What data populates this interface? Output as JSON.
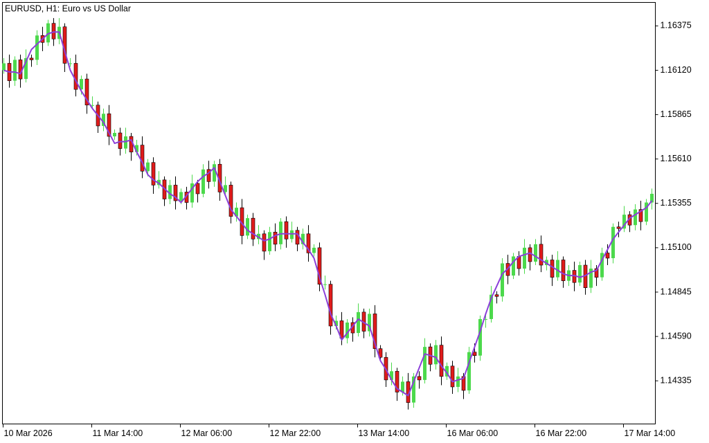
{
  "chart_data": {
    "type": "candlestick",
    "title": "EURUSD, H1:  Euro vs US Dollar",
    "categories": [
      "10 Mar 2026",
      null,
      null,
      null,
      null,
      null,
      null,
      null,
      null,
      null,
      null,
      null,
      null,
      null,
      null,
      null,
      "11 Mar 14:00",
      null,
      null,
      null,
      null,
      null,
      null,
      null,
      null,
      null,
      null,
      null,
      null,
      null,
      null,
      null,
      "12 Mar 06:00",
      null,
      null,
      null,
      null,
      null,
      null,
      null,
      null,
      null,
      null,
      null,
      null,
      null,
      null,
      null,
      "12 Mar 22:00",
      null,
      null,
      null,
      null,
      null,
      null,
      null,
      null,
      null,
      null,
      null,
      null,
      null,
      null,
      null,
      "13 Mar 14:00",
      null,
      null,
      null,
      null,
      null,
      null,
      null,
      null,
      null,
      null,
      null,
      null,
      null,
      null,
      null,
      "16 Mar 06:00",
      null,
      null,
      null,
      null,
      null,
      null,
      null,
      null,
      null,
      null,
      null,
      null,
      null,
      null,
      null,
      "16 Mar 22:00",
      null,
      null,
      null,
      null,
      null,
      null,
      null,
      null,
      null,
      null,
      null,
      null,
      null,
      null,
      null,
      "17 Mar 14:00",
      null,
      null,
      null,
      null,
      null
    ],
    "open": [
      1.1612,
      1.1616,
      1.1606,
      1.1618,
      1.1607,
      1.1619,
      1.1618,
      1.1632,
      1.1628,
      1.1639,
      1.163,
      1.1637,
      1.1616,
      1.1616,
      1.1601,
      1.1607,
      1.1592,
      1.1592,
      1.158,
      1.1587,
      1.1574,
      1.1576,
      1.1567,
      1.1574,
      1.1565,
      1.1569,
      1.1554,
      1.1559,
      1.1546,
      1.1549,
      1.1538,
      1.1546,
      1.1537,
      1.1542,
      1.1536,
      1.1547,
      1.1541,
      1.1555,
      1.1548,
      1.1558,
      1.1542,
      1.1546,
      1.1528,
      1.1533,
      1.1517,
      1.1527,
      1.1515,
      1.1518,
      1.1508,
      1.1519,
      1.1512,
      1.1525,
      1.1515,
      1.152,
      1.1512,
      1.1518,
      1.1507,
      1.151,
      1.1489,
      1.1489,
      1.1465,
      1.1468,
      1.1458,
      1.1467,
      1.1461,
      1.1473,
      1.1462,
      1.1472,
      1.1452,
      1.1447,
      1.1434,
      1.1439,
      1.1427,
      1.1433,
      1.1421,
      1.1436,
      1.1434,
      1.1453,
      1.1443,
      1.1454,
      1.1436,
      1.1442,
      1.143,
      1.1436,
      1.1428,
      1.145,
      1.1448,
      1.1469,
      1.1469,
      1.1483,
      1.1482,
      1.1501,
      1.1494,
      1.1505,
      1.1498,
      1.151,
      1.1502,
      1.1512,
      1.15,
      1.1503,
      1.1493,
      1.1503,
      1.1491,
      1.1497,
      1.149,
      1.15,
      1.1487,
      1.1498,
      1.1493,
      1.1507,
      1.1504,
      1.1522,
      1.1521,
      1.1529,
      1.1523,
      1.1532,
      1.1525,
      1.1536
    ],
    "high": [
      1.1619,
      1.1621,
      1.162,
      1.1621,
      1.1624,
      1.1621,
      1.1635,
      1.1637,
      1.1641,
      1.1642,
      1.1642,
      1.1639,
      1.1619,
      1.1621,
      1.1609,
      1.161,
      1.1597,
      1.1594,
      1.159,
      1.1592,
      1.1578,
      1.1579,
      1.1579,
      1.1576,
      1.1572,
      1.1574,
      1.1561,
      1.1562,
      1.1554,
      1.1551,
      1.1549,
      1.1551,
      1.1544,
      1.1545,
      1.1552,
      1.1549,
      1.1558,
      1.156,
      1.156,
      1.1561,
      1.1551,
      1.1548,
      1.1536,
      1.1538,
      1.1529,
      1.153,
      1.1523,
      1.152,
      1.1522,
      1.1524,
      1.1527,
      1.1528,
      1.1525,
      1.1522,
      1.1521,
      1.1523,
      1.1512,
      1.1513,
      1.1494,
      1.1491,
      1.1471,
      1.1473,
      1.1469,
      1.147,
      1.1478,
      1.1475,
      1.1475,
      1.1477,
      1.1454,
      1.145,
      1.1444,
      1.1441,
      1.1436,
      1.1438,
      1.1438,
      1.1439,
      1.1458,
      1.1455,
      1.1457,
      1.1459,
      1.1444,
      1.1445,
      1.1441,
      1.1438,
      1.1453,
      1.1455,
      1.1471,
      1.1472,
      1.1488,
      1.1485,
      1.1504,
      1.1506,
      1.1507,
      1.1508,
      1.1515,
      1.1512,
      1.1515,
      1.1517,
      1.1505,
      1.1506,
      1.1508,
      1.1505,
      1.15,
      1.1502,
      1.1502,
      1.1503,
      1.1503,
      1.15,
      1.151,
      1.1512,
      1.1524,
      1.1525,
      1.1534,
      1.1531,
      1.1535,
      1.1537,
      1.1538,
      1.1544
    ],
    "low": [
      1.161,
      1.1602,
      1.1603,
      1.1602,
      1.1605,
      1.1614,
      1.1615,
      1.1623,
      1.1626,
      1.1626,
      1.1627,
      1.1611,
      1.1614,
      1.1597,
      1.1598,
      1.1587,
      1.159,
      1.1576,
      1.1577,
      1.1569,
      1.1572,
      1.1563,
      1.1564,
      1.156,
      1.1563,
      1.155,
      1.1551,
      1.1541,
      1.1544,
      1.1534,
      1.1535,
      1.1532,
      1.1535,
      1.1532,
      1.1533,
      1.1536,
      1.1539,
      1.1544,
      1.1545,
      1.1537,
      1.154,
      1.1524,
      1.1525,
      1.1512,
      1.1515,
      1.1511,
      1.1512,
      1.1503,
      1.1506,
      1.1508,
      1.1509,
      1.151,
      1.1513,
      1.1508,
      1.1509,
      1.1502,
      1.1505,
      1.1485,
      1.1486,
      1.146,
      1.1463,
      1.1454,
      1.1455,
      1.1456,
      1.1459,
      1.1458,
      1.1459,
      1.1447,
      1.1445,
      1.143,
      1.1431,
      1.1422,
      1.1425,
      1.1417,
      1.1418,
      1.1429,
      1.1432,
      1.1439,
      1.144,
      1.1431,
      1.1434,
      1.1426,
      1.1427,
      1.1423,
      1.1426,
      1.1444,
      1.1445,
      1.1464,
      1.1467,
      1.1478,
      1.1479,
      1.1489,
      1.1492,
      1.1494,
      1.1495,
      1.1497,
      1.15,
      1.1496,
      1.1497,
      1.1488,
      1.1491,
      1.1487,
      1.1488,
      1.1485,
      1.1488,
      1.1483,
      1.1484,
      1.1488,
      1.1491,
      1.15,
      1.1501,
      1.1516,
      1.1519,
      1.1519,
      1.152,
      1.152,
      1.1523,
      1.1532
    ],
    "close": [
      1.1616,
      1.1606,
      1.1618,
      1.1607,
      1.1619,
      1.1618,
      1.1632,
      1.1628,
      1.1639,
      1.163,
      1.1637,
      1.1616,
      1.1616,
      1.1601,
      1.1607,
      1.1592,
      1.1592,
      1.158,
      1.1587,
      1.1574,
      1.1576,
      1.1567,
      1.1574,
      1.1565,
      1.1569,
      1.1554,
      1.1559,
      1.1546,
      1.1549,
      1.1538,
      1.1546,
      1.1537,
      1.1542,
      1.1536,
      1.1547,
      1.1541,
      1.1555,
      1.1548,
      1.1558,
      1.1542,
      1.1546,
      1.1528,
      1.1533,
      1.1517,
      1.1527,
      1.1515,
      1.1518,
      1.1508,
      1.1519,
      1.1512,
      1.1525,
      1.1515,
      1.152,
      1.1512,
      1.1518,
      1.1507,
      1.151,
      1.1489,
      1.1489,
      1.1465,
      1.1468,
      1.1458,
      1.1467,
      1.1461,
      1.1473,
      1.1462,
      1.1472,
      1.1452,
      1.1447,
      1.1434,
      1.1439,
      1.1427,
      1.1433,
      1.1421,
      1.1436,
      1.1434,
      1.1453,
      1.1443,
      1.1454,
      1.1436,
      1.1442,
      1.143,
      1.1436,
      1.1428,
      1.145,
      1.1448,
      1.1469,
      1.1469,
      1.1483,
      1.1482,
      1.1501,
      1.1494,
      1.1505,
      1.1498,
      1.151,
      1.1502,
      1.1512,
      1.15,
      1.1503,
      1.1493,
      1.1503,
      1.1491,
      1.1497,
      1.149,
      1.15,
      1.1487,
      1.1498,
      1.1493,
      1.1507,
      1.1504,
      1.1522,
      1.1521,
      1.1529,
      1.1523,
      1.1532,
      1.1525,
      1.1536,
      1.1541
    ],
    "up_color": "#4cd94c",
    "down_color": "#e01b1b",
    "line": {
      "color": "#8b3fd9",
      "values": [
        1.1612,
        1.1611,
        1.1611,
        1.161,
        1.1617,
        1.1624,
        1.1627,
        1.163,
        1.1633,
        1.1634,
        1.1634,
        1.1623,
        1.1612,
        1.1606,
        1.16,
        1.1595,
        1.159,
        1.1586,
        1.1582,
        1.1576,
        1.157,
        1.1571,
        1.1571,
        1.1572,
        1.1565,
        1.1559,
        1.1552,
        1.1549,
        1.1547,
        1.1544,
        1.1541,
        1.1539,
        1.1536,
        1.154,
        1.1544,
        1.1548,
        1.1551,
        1.1553,
        1.1556,
        1.1548,
        1.154,
        1.1532,
        1.1528,
        1.1524,
        1.152,
        1.1518,
        1.1516,
        1.1514,
        1.1515,
        1.1517,
        1.1518,
        1.1518,
        1.1518,
        1.1518,
        1.1513,
        1.1509,
        1.1504,
        1.1493,
        1.1483,
        1.1472,
        1.1465,
        1.1457,
        1.1461,
        1.1465,
        1.1469,
        1.1467,
        1.1465,
        1.1455,
        1.1445,
        1.144,
        1.1434,
        1.1429,
        1.1427,
        1.1425,
        1.1433,
        1.1441,
        1.1449,
        1.1448,
        1.1447,
        1.1442,
        1.1438,
        1.1433,
        1.1434,
        1.1435,
        1.1444,
        1.1453,
        1.1462,
        1.1472,
        1.1481,
        1.1488,
        1.1495,
        1.1498,
        1.1502,
        1.1505,
        1.1506,
        1.1507,
        1.1505,
        1.1503,
        1.1501,
        1.1499,
        1.1497,
        1.1495,
        1.1494,
        1.1494,
        1.1493,
        1.1494,
        1.1496,
        1.1497,
        1.1503,
        1.1509,
        1.1515,
        1.1519,
        1.1523,
        1.1527,
        1.1529,
        1.1531,
        1.1533,
        1.1537
      ]
    },
    "ylim": [
      1.14087,
      1.1651
    ],
    "yticks": [
      1.16375,
      {
        "value": 1.1612,
        "label": "1.16120"
      },
      1.15865,
      {
        "value": 1.1561,
        "label": "1.15610"
      },
      1.15355,
      {
        "value": 1.151,
        "label": "1.15100"
      },
      1.14845,
      {
        "value": 1.1459,
        "label": "1.14590"
      },
      1.14335
    ]
  }
}
